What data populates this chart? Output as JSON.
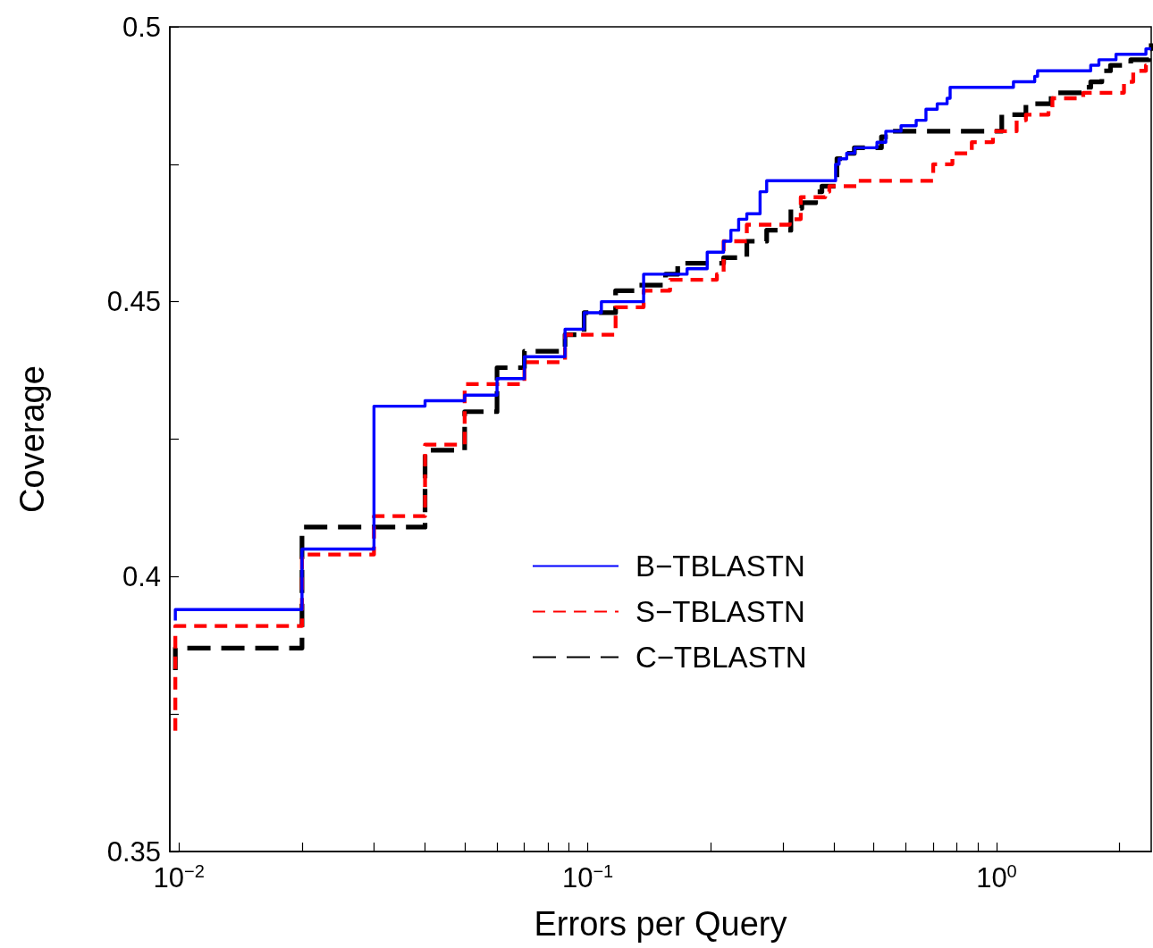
{
  "chart_data": {
    "type": "step",
    "xlabel": "Errors per Query",
    "ylabel": "Coverage",
    "log": "x",
    "legend": "bottom",
    "xlim": [
      0.0095,
      2.39
    ],
    "xticks": [
      {
        "value": 0.01,
        "label": "10$^{−2}$"
      },
      {
        "value": 0.02,
        "label": null
      },
      {
        "value": 0.03,
        "label": null
      },
      {
        "value": 0.04,
        "label": null
      },
      {
        "value": 0.05,
        "label": null
      },
      {
        "value": 0.06,
        "label": null
      },
      {
        "value": 0.07,
        "label": null
      },
      {
        "value": 0.08,
        "label": null
      },
      {
        "value": 0.09,
        "label": null
      },
      {
        "value": 0.1,
        "label": "10$^{−1}$"
      },
      {
        "value": 0.2,
        "label": null
      },
      {
        "value": 0.3,
        "label": null
      },
      {
        "value": 0.4,
        "label": null
      },
      {
        "value": 0.5,
        "label": null
      },
      {
        "value": 0.6,
        "label": null
      },
      {
        "value": 0.7,
        "label": null
      },
      {
        "value": 0.8,
        "label": null
      },
      {
        "value": 0.9,
        "label": null
      },
      {
        "value": 1,
        "label": "10$^{0}$"
      },
      {
        "value": 2,
        "label": null
      }
    ],
    "ylim": [
      0.35,
      0.5
    ],
    "yticks": [
      0.35,
      {
        "value": 0.375,
        "label": null
      },
      0.4,
      {
        "value": 0.425,
        "label": null
      },
      0.45,
      {
        "value": 0.475,
        "label": null
      },
      0.5
    ],
    "series": [
      {
        "name": "B−TBLASTN",
        "color": "#0000ff",
        "line_style": "solid",
        "x": [
          0.0098,
          0.0098,
          0.02,
          0.03,
          0.04,
          0.05,
          0.06,
          0.07,
          0.088,
          0.098,
          0.108,
          0.137,
          0.175,
          0.196,
          0.215,
          0.224,
          0.234,
          0.245,
          0.264,
          0.274,
          0.404,
          0.412,
          0.43,
          0.45,
          0.51,
          0.536,
          0.584,
          0.636,
          0.672,
          0.716,
          0.757,
          0.77,
          1.1,
          1.24,
          1.26,
          1.7,
          1.78,
          1.96,
          2.32,
          2.39
        ],
        "values": [
          0.392,
          0.394,
          0.405,
          0.431,
          0.432,
          0.433,
          0.436,
          0.44,
          0.445,
          0.448,
          0.45,
          0.455,
          0.456,
          0.459,
          0.461,
          0.463,
          0.465,
          0.466,
          0.47,
          0.472,
          0.475,
          0.476,
          0.477,
          0.478,
          0.479,
          0.481,
          0.482,
          0.483,
          0.485,
          0.486,
          0.487,
          0.489,
          0.49,
          0.491,
          0.492,
          0.493,
          0.494,
          0.495,
          0.496,
          0.496
        ]
      },
      {
        "name": "S−TBLASTN",
        "color": "#ff0000",
        "line_style": "dashed",
        "x": [
          0.0098,
          0.0098,
          0.02,
          0.03,
          0.04,
          0.05,
          0.07,
          0.088,
          0.117,
          0.137,
          0.159,
          0.207,
          0.215,
          0.245,
          0.312,
          0.332,
          0.381,
          0.39,
          0.46,
          0.7,
          0.78,
          0.87,
          0.98,
          1.12,
          1.18,
          1.34,
          1.37,
          1.63,
          2.05,
          2.16,
          2.32,
          2.39
        ],
        "values": [
          0.372,
          0.391,
          0.404,
          0.411,
          0.424,
          0.435,
          0.439,
          0.444,
          0.449,
          0.452,
          0.454,
          0.455,
          0.461,
          0.464,
          0.465,
          0.469,
          0.47,
          0.471,
          0.472,
          0.475,
          0.477,
          0.479,
          0.481,
          0.483,
          0.484,
          0.485,
          0.487,
          0.488,
          0.49,
          0.492,
          0.493,
          0.493
        ]
      },
      {
        "name": "C−TBLASTN",
        "color": "#000000",
        "line_style": "dashed",
        "x": [
          0.0098,
          0.0098,
          0.02,
          0.04,
          0.05,
          0.06,
          0.07,
          0.088,
          0.098,
          0.117,
          0.133,
          0.155,
          0.166,
          0.215,
          0.245,
          0.274,
          0.314,
          0.334,
          0.361,
          0.374,
          0.407,
          0.43,
          0.449,
          0.5,
          0.523,
          0.553,
          1.03,
          1.18,
          1.28,
          1.36,
          1.63,
          1.7,
          1.81,
          1.9,
          2.13,
          2.36,
          2.39
        ],
        "values": [
          0.383,
          0.387,
          0.409,
          0.423,
          0.43,
          0.438,
          0.441,
          0.444,
          0.448,
          0.452,
          0.453,
          0.455,
          0.457,
          0.458,
          0.461,
          0.463,
          0.467,
          0.468,
          0.47,
          0.471,
          0.476,
          0.477,
          0.478,
          0.478,
          0.48,
          0.481,
          0.484,
          0.486,
          0.486,
          0.488,
          0.489,
          0.49,
          0.492,
          0.493,
          0.494,
          0.496,
          0.497
        ]
      }
    ]
  }
}
